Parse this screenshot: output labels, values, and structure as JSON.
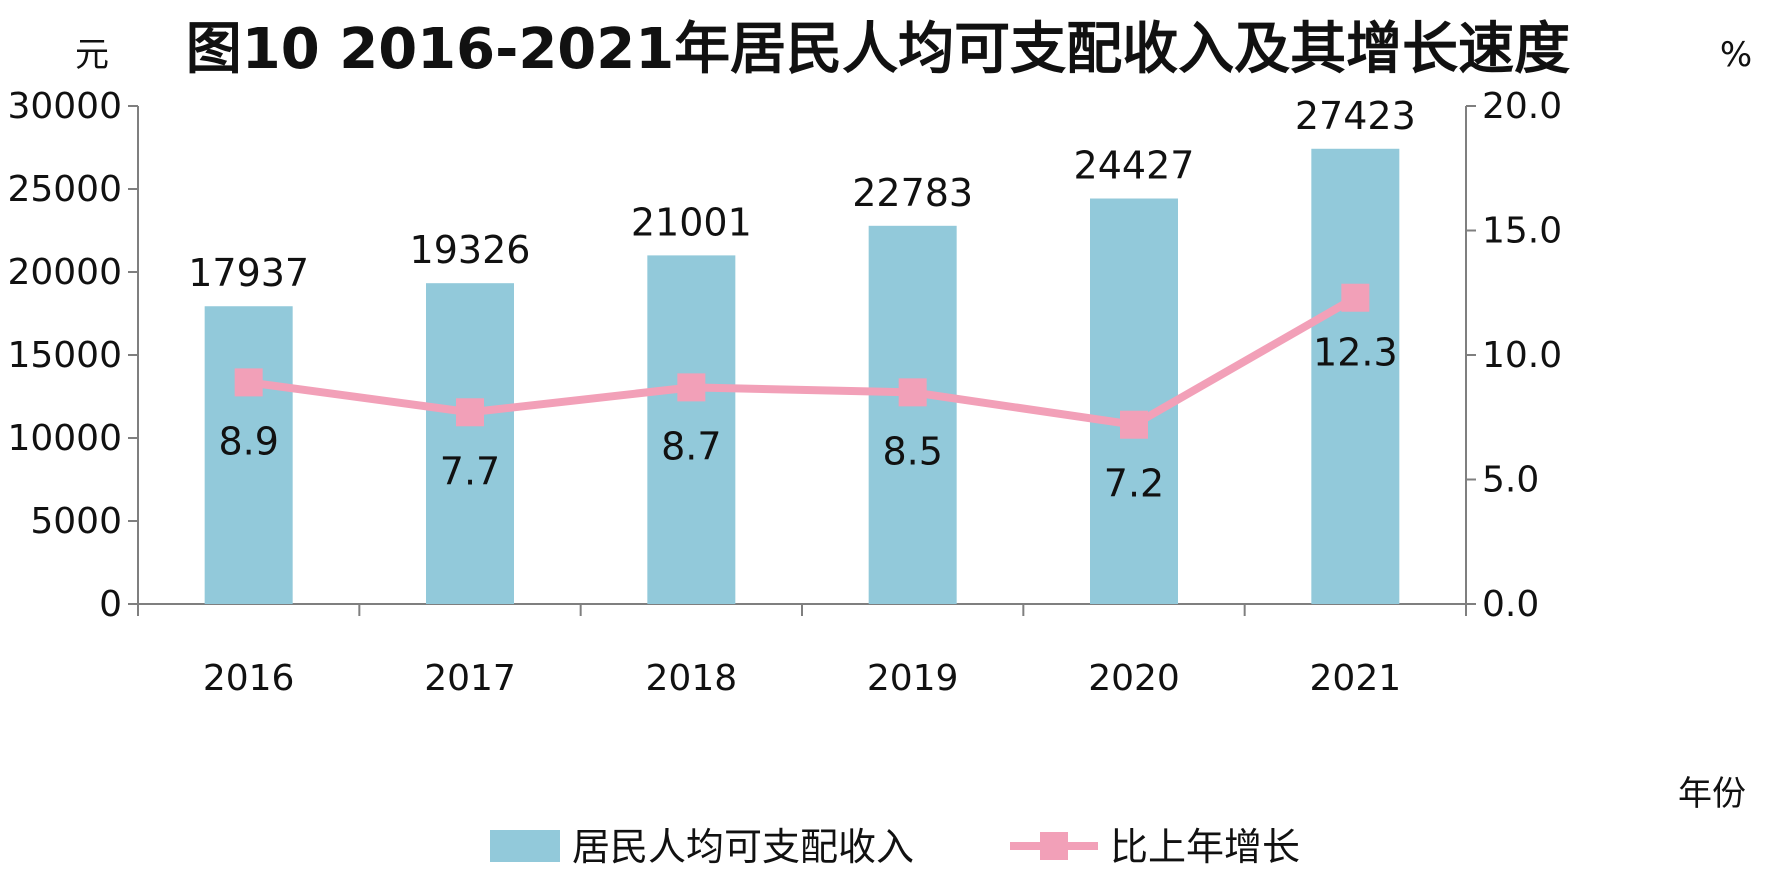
{
  "chart_data": {
    "type": "bar",
    "title": "图10  2016-2021年居民人均可支配收入及其增长速度",
    "categories": [
      "2016",
      "2017",
      "2018",
      "2019",
      "2020",
      "2021"
    ],
    "xlabel": "年份",
    "ylabel": "元",
    "ylim": [
      0,
      30000
    ],
    "yticks": [
      "0",
      "5000",
      "10000",
      "15000",
      "20000",
      "25000",
      "30000"
    ],
    "y2label": "%",
    "y2lim": [
      0,
      20
    ],
    "y2ticks": [
      "0.0",
      "5.0",
      "10.0",
      "15.0",
      "20.0"
    ],
    "grid": false,
    "legend_position": "bottom",
    "series": [
      {
        "name": "居民人均可支配收入",
        "type": "bar",
        "axis": "left",
        "color": "#92C9DA",
        "values": [
          17937,
          19326,
          21001,
          22783,
          24427,
          27423
        ],
        "labels": [
          "17937",
          "19326",
          "21001",
          "22783",
          "24427",
          "27423"
        ]
      },
      {
        "name": "比上年增长",
        "type": "line",
        "axis": "right",
        "color": "#F2A0B8",
        "values": [
          8.9,
          7.7,
          8.7,
          8.5,
          7.2,
          12.3
        ],
        "labels": [
          "8.9",
          "7.7",
          "8.7",
          "8.5",
          "7.2",
          "12.3"
        ]
      }
    ]
  }
}
